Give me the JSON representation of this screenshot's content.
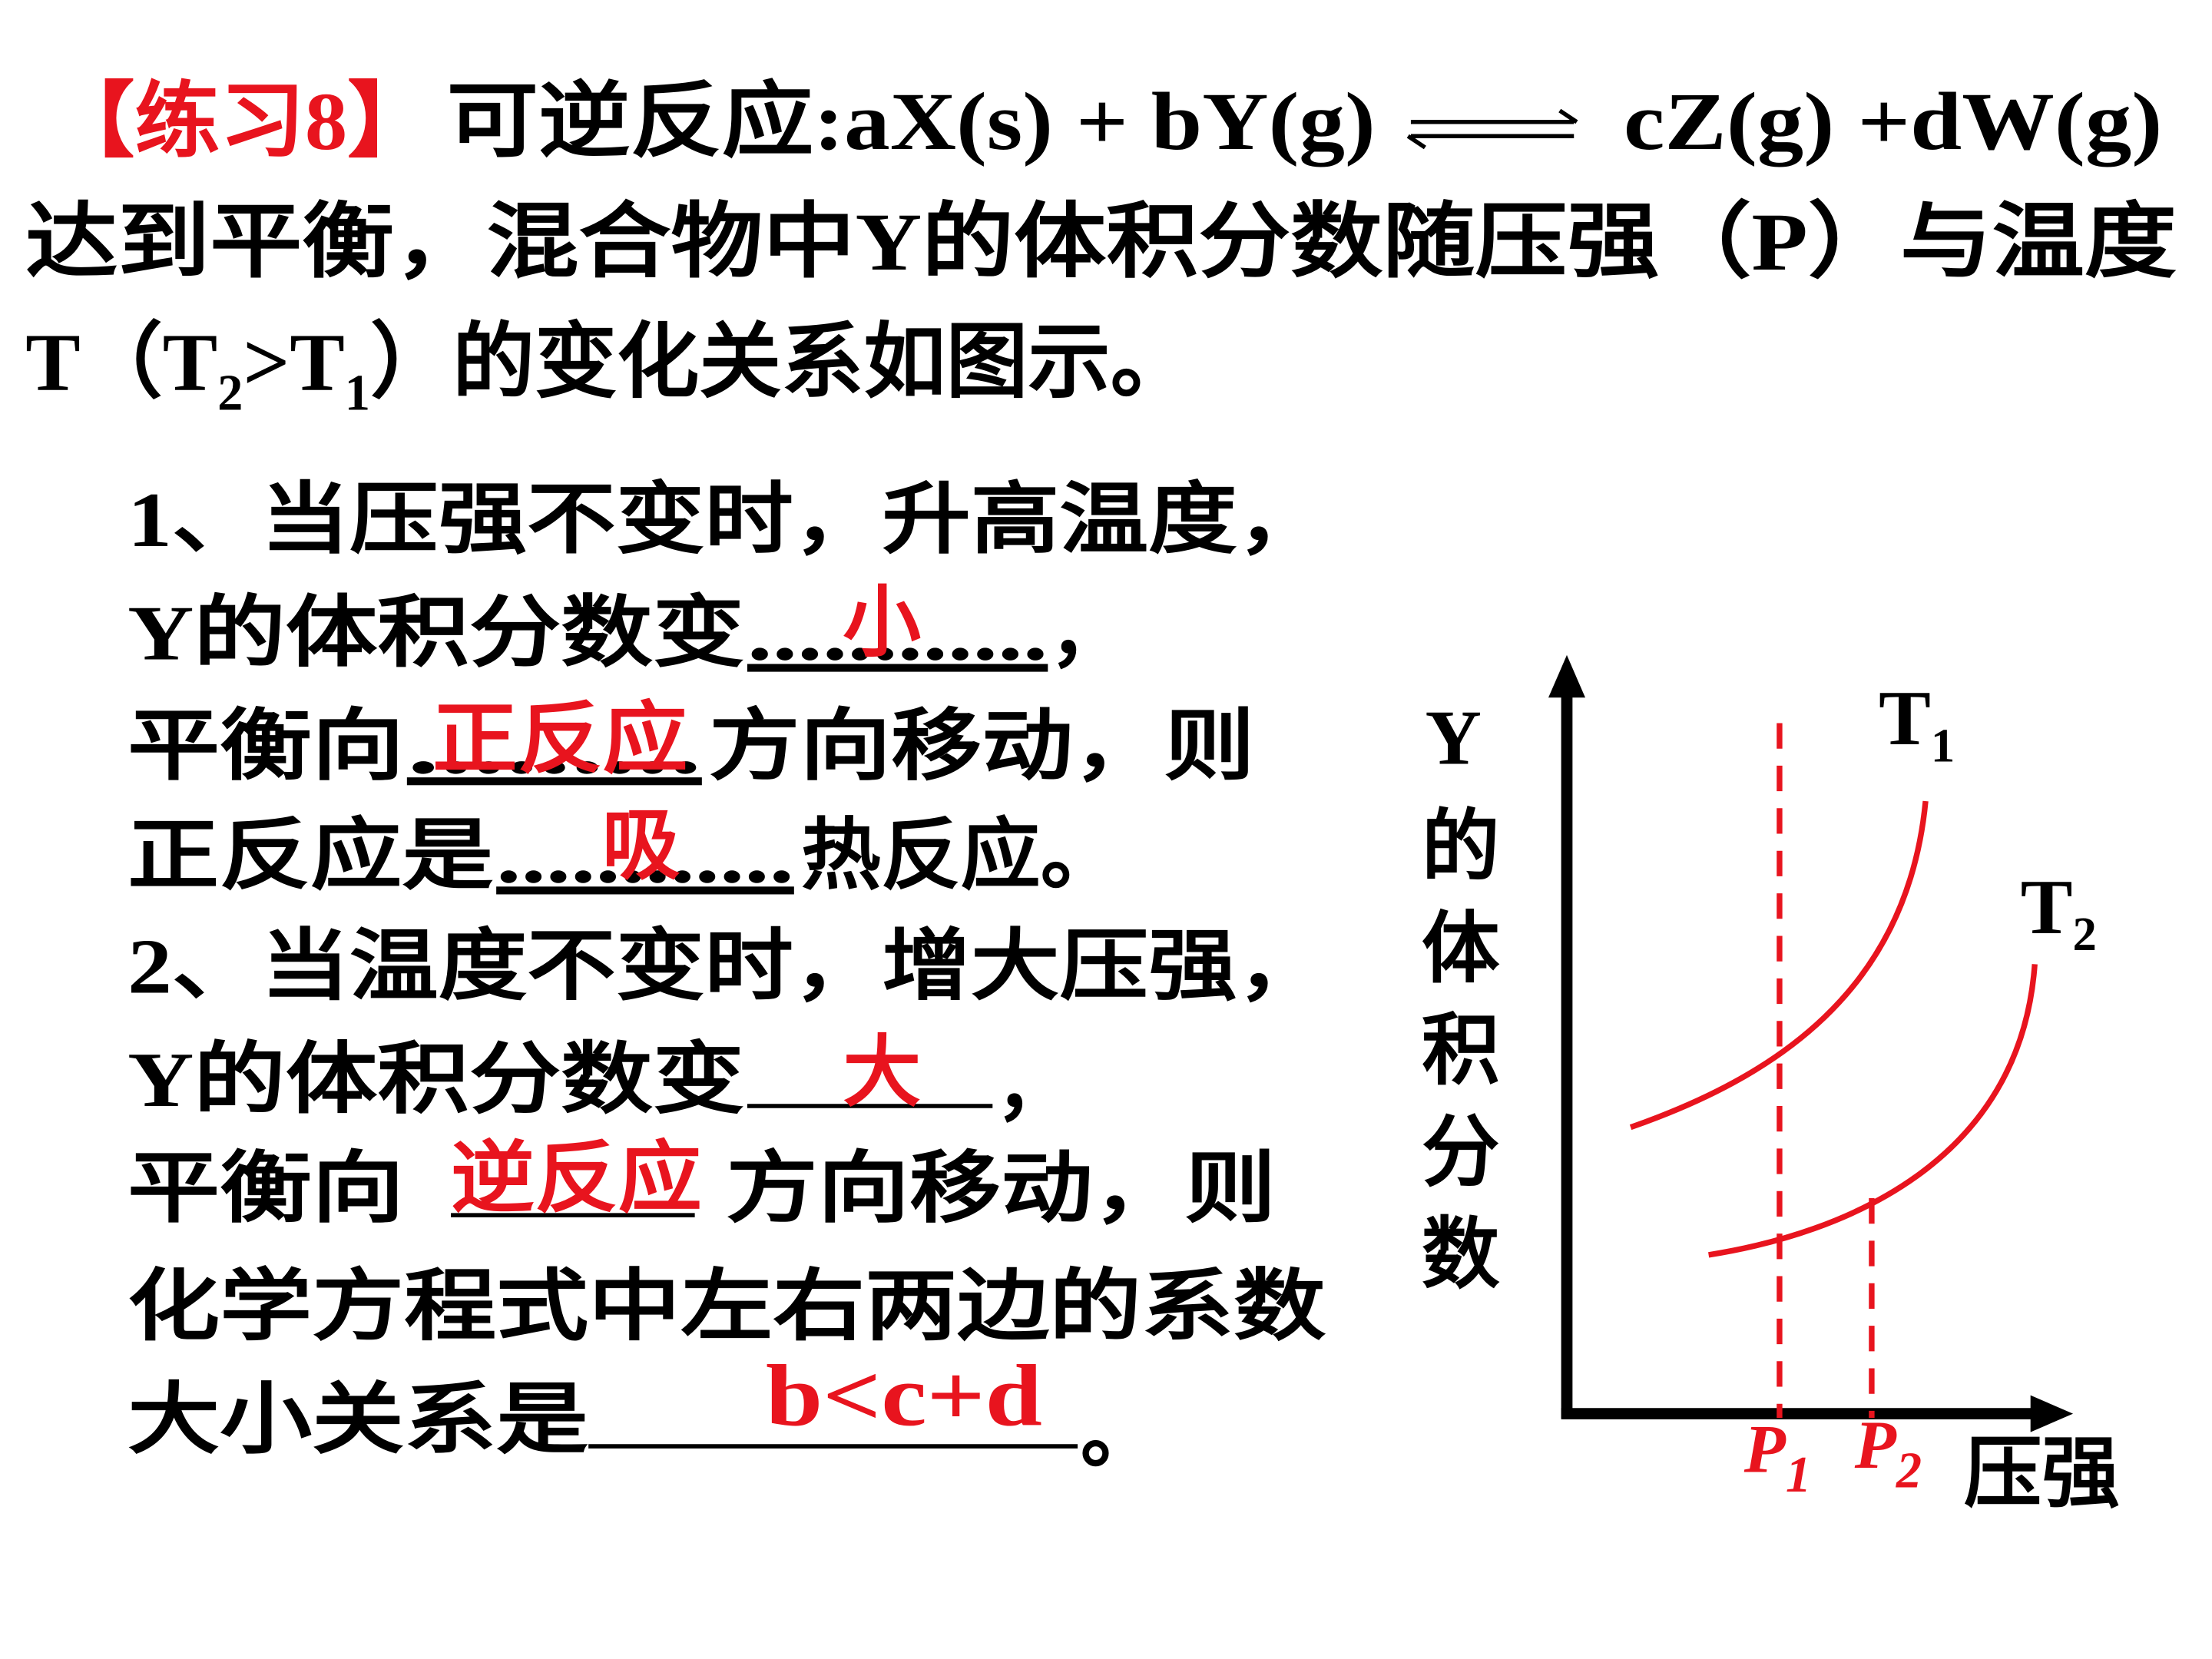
{
  "header": {
    "tag": "【练习8】",
    "reaction_left": "可逆反应:aX(s) + bY(g)",
    "reaction_right": "cZ(g) +dW(g)"
  },
  "intro": {
    "line2": "达到平衡，混合物中Y的体积分数随压强（P）与温度",
    "line3": {
      "t": "T（T",
      "sub2": "2",
      "gt": ">T",
      "sub1": "1",
      "rest": "）的变化关系如图示。"
    }
  },
  "questions": [
    {
      "lines": [
        {
          "text": "1、当压强不变时，升高温度，"
        },
        {
          "before": "Y的体积分数变",
          "blank": "............",
          "after": "，",
          "answer": "小"
        },
        {
          "before": "平衡向",
          "blank": ".........",
          "after": "方向移动，则",
          "answer": "正反应"
        },
        {
          "before": "正反应是",
          "blank": "............",
          "after": "热反应。",
          "answer": "吸"
        }
      ]
    },
    {
      "lines": [
        {
          "text": "2、当温度不变时，增大压强，"
        },
        {
          "before": "Y的体积分数变",
          "after": "，",
          "answer": "大"
        },
        {
          "before": "平衡向",
          "after": "方向移动，则",
          "answer": "逆反应"
        },
        {
          "text": "化学方程式中左右两边的系数"
        },
        {
          "before": "大小关系是",
          "after": "。",
          "answer": "b<c+d"
        }
      ]
    }
  ],
  "graph": {
    "y_label": "Y的体积分数",
    "x_label": "压强",
    "curves": [
      {
        "name": "T",
        "sub": "1"
      },
      {
        "name": "T",
        "sub": "2"
      }
    ],
    "pressures": [
      {
        "name": "P",
        "sub": "1"
      },
      {
        "name": "P",
        "sub": "2"
      }
    ]
  }
}
